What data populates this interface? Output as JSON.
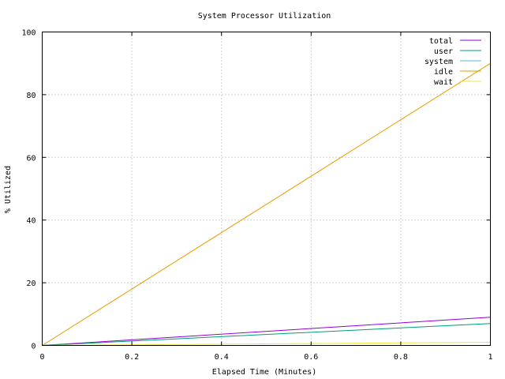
{
  "chart_data": {
    "type": "line",
    "title": "System Processor Utilization",
    "xlabel": "Elapsed Time (Minutes)",
    "ylabel": "% Utilized",
    "xlim": [
      0,
      1
    ],
    "ylim": [
      0,
      100
    ],
    "xticks": [
      0,
      0.2,
      0.4,
      0.6,
      0.8,
      1
    ],
    "xtick_labels": [
      "0",
      "0.2",
      "0.4",
      "0.6",
      "0.8",
      "1"
    ],
    "yticks": [
      0,
      20,
      40,
      60,
      80,
      100
    ],
    "ytick_labels": [
      "0",
      "20",
      "40",
      "60",
      "80",
      "100"
    ],
    "grid": true,
    "legend_position": "top-right",
    "x": [
      0,
      1
    ],
    "series": [
      {
        "name": "total",
        "color": "#9400d3",
        "values": [
          0,
          9
        ]
      },
      {
        "name": "user",
        "color": "#009e73",
        "values": [
          0,
          7
        ]
      },
      {
        "name": "system",
        "color": "#56b4e9",
        "values": [
          0,
          0
        ]
      },
      {
        "name": "idle",
        "color": "#e69f00",
        "values": [
          0,
          90
        ]
      },
      {
        "name": "wait",
        "color": "#f0e442",
        "values": [
          0,
          1
        ]
      }
    ]
  }
}
